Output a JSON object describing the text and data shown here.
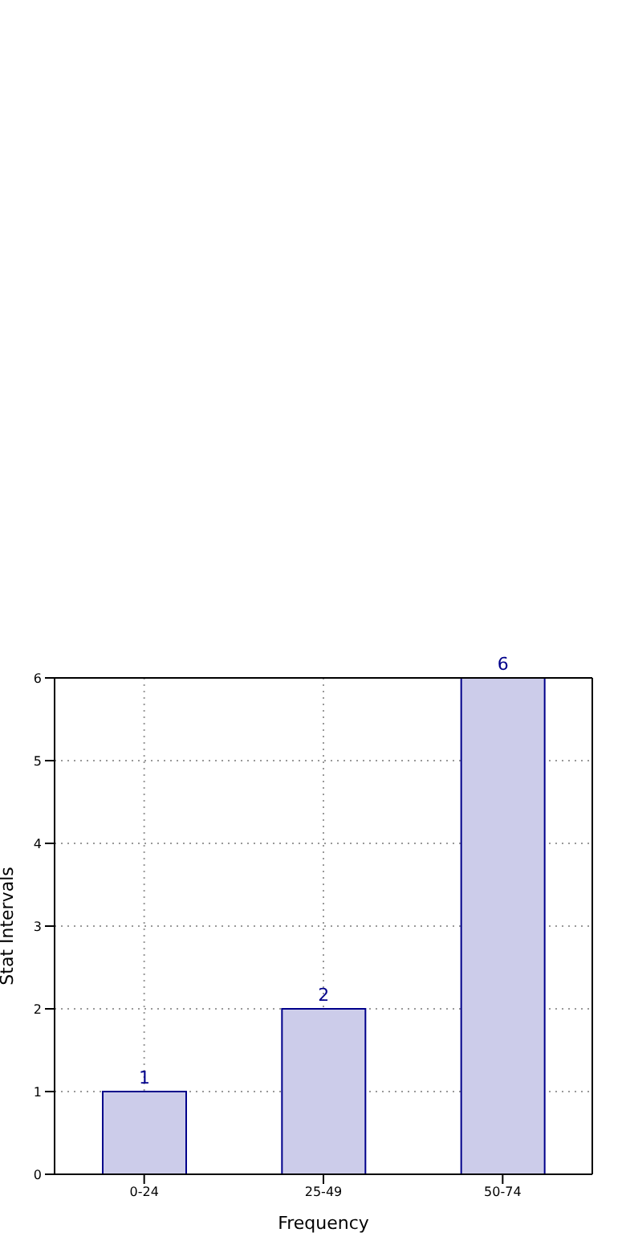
{
  "chart_data": {
    "type": "bar",
    "xlabel": "Frequency",
    "ylabel": "Stat Intervals",
    "categories": [
      "0-24",
      "25-49",
      "50-74"
    ],
    "values": [
      1,
      2,
      6
    ],
    "color": "#ccccea",
    "ylim": [
      0,
      6
    ],
    "yticks": [
      0,
      1,
      2,
      3,
      4,
      5,
      6
    ],
    "grid": true,
    "data_labels": true
  }
}
